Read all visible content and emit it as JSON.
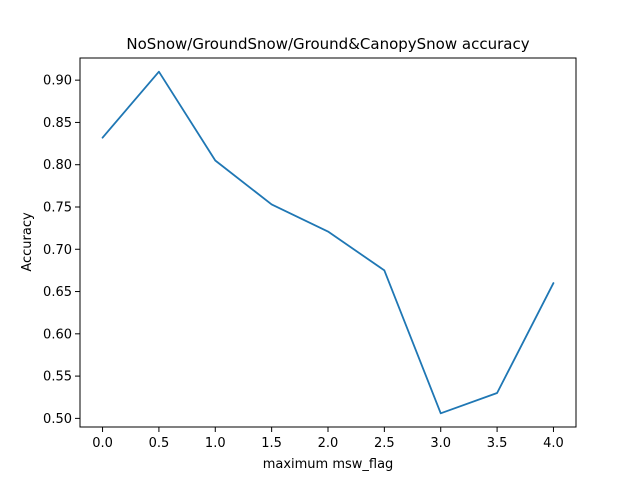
{
  "chart_data": {
    "type": "line",
    "title": "NoSnow/GroundSnow/Ground&CanopySnow accuracy",
    "xlabel": "maximum msw_flag",
    "ylabel": "Accuracy",
    "x": [
      0.0,
      0.5,
      1.0,
      1.5,
      2.0,
      2.5,
      3.0,
      3.5,
      4.0
    ],
    "series": [
      {
        "values": [
          0.832,
          0.91,
          0.805,
          0.753,
          0.721,
          0.675,
          0.506,
          0.53,
          0.66
        ],
        "color": "#1f77b4"
      }
    ],
    "xlim": [
      -0.2,
      4.2
    ],
    "ylim": [
      0.4898,
      0.9262
    ],
    "xticks": [
      0.0,
      0.5,
      1.0,
      1.5,
      2.0,
      2.5,
      3.0,
      3.5,
      4.0
    ],
    "xtick_labels": [
      "0.0",
      "0.5",
      "1.0",
      "1.5",
      "2.0",
      "2.5",
      "3.0",
      "3.5",
      "4.0"
    ],
    "yticks": [
      0.5,
      0.55,
      0.6,
      0.65,
      0.7,
      0.75,
      0.8,
      0.85,
      0.9
    ],
    "ytick_labels": [
      "0.50",
      "0.55",
      "0.60",
      "0.65",
      "0.70",
      "0.75",
      "0.80",
      "0.85",
      "0.90"
    ],
    "grid": false,
    "legend": "none"
  }
}
